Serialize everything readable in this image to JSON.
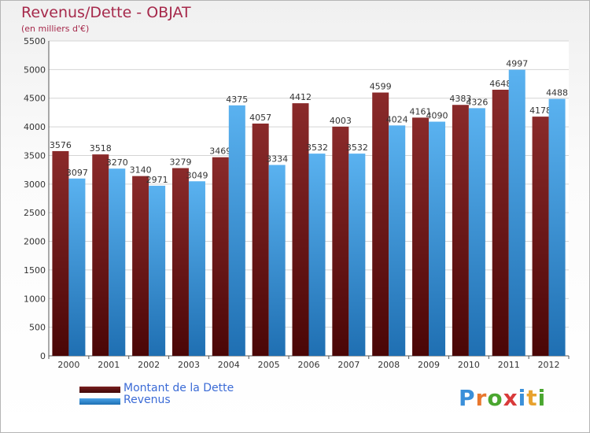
{
  "chart_data": {
    "type": "bar",
    "title": "Revenus/Dette - OBJAT",
    "subtitle": "(en milliers d'€)",
    "categories": [
      "2000",
      "2001",
      "2002",
      "2003",
      "2004",
      "2005",
      "2006",
      "2007",
      "2008",
      "2009",
      "2010",
      "2011",
      "2012"
    ],
    "series": [
      {
        "name": "Montant de la Dette",
        "color": "#7a1f1f",
        "values": [
          3576,
          3518,
          3140,
          3279,
          3469,
          4057,
          4412,
          4003,
          4599,
          4161,
          4383,
          4648,
          4178
        ]
      },
      {
        "name": "Revenus",
        "color": "#4aa3e8",
        "values": [
          3097,
          3270,
          2971,
          3049,
          4375,
          3334,
          3532,
          3532,
          4024,
          4090,
          4326,
          4997,
          4488
        ]
      }
    ],
    "ylim": [
      0,
      5500
    ],
    "yticks": [
      0,
      500,
      1000,
      1500,
      2000,
      2500,
      3000,
      3500,
      4000,
      4500,
      5000,
      5500
    ],
    "grid": true,
    "legend_position": "bottom-left"
  },
  "logo": {
    "text": "Proxiti",
    "letters": [
      "P",
      "r",
      "o",
      "x",
      "i",
      "t",
      "i"
    ],
    "colors": [
      "#3a8fd9",
      "#e8772e",
      "#4aa62f",
      "#d93a3a",
      "#3a8fd9",
      "#e8a22e",
      "#4aa62f"
    ]
  }
}
